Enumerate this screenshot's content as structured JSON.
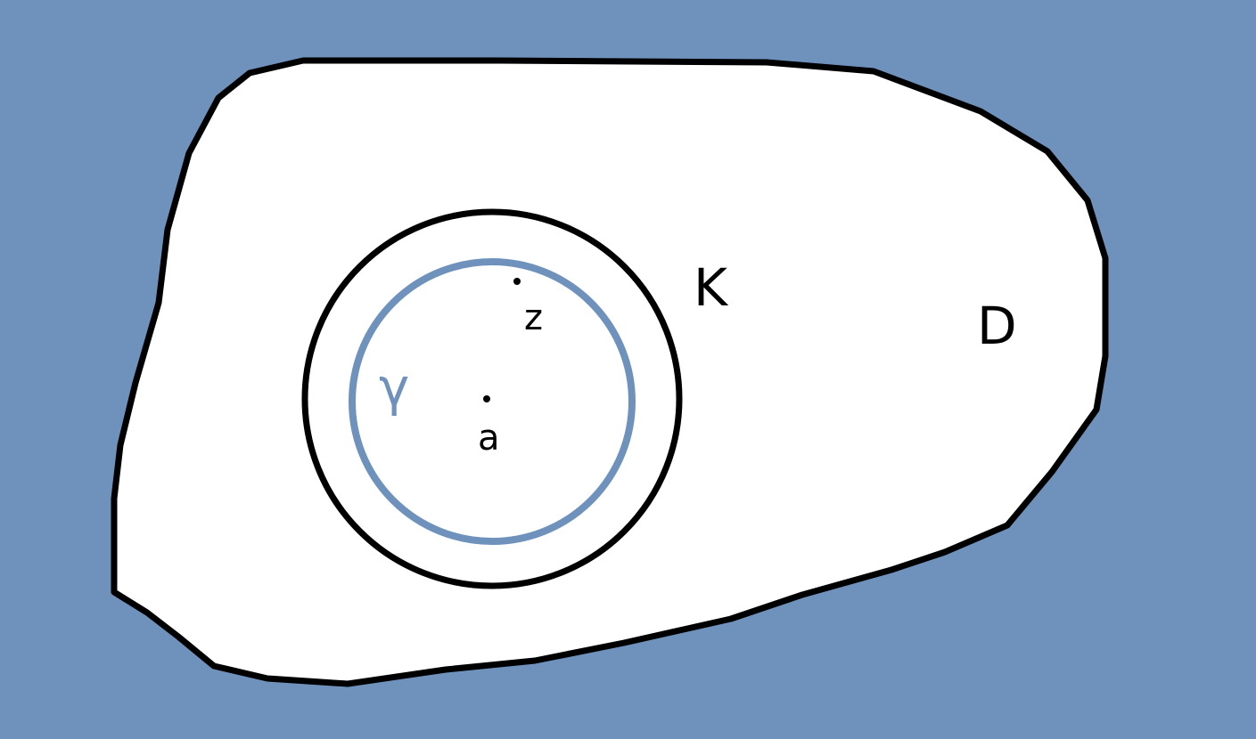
{
  "labels": {
    "domain": "D",
    "compact_set": "K",
    "curve": "γ",
    "point_a": "a",
    "point_z": "z"
  },
  "colors": {
    "background": "#6f92bd",
    "region_fill": "#ffffff",
    "outline": "#000000",
    "curve": "#6f92bd",
    "text": "#000000"
  }
}
